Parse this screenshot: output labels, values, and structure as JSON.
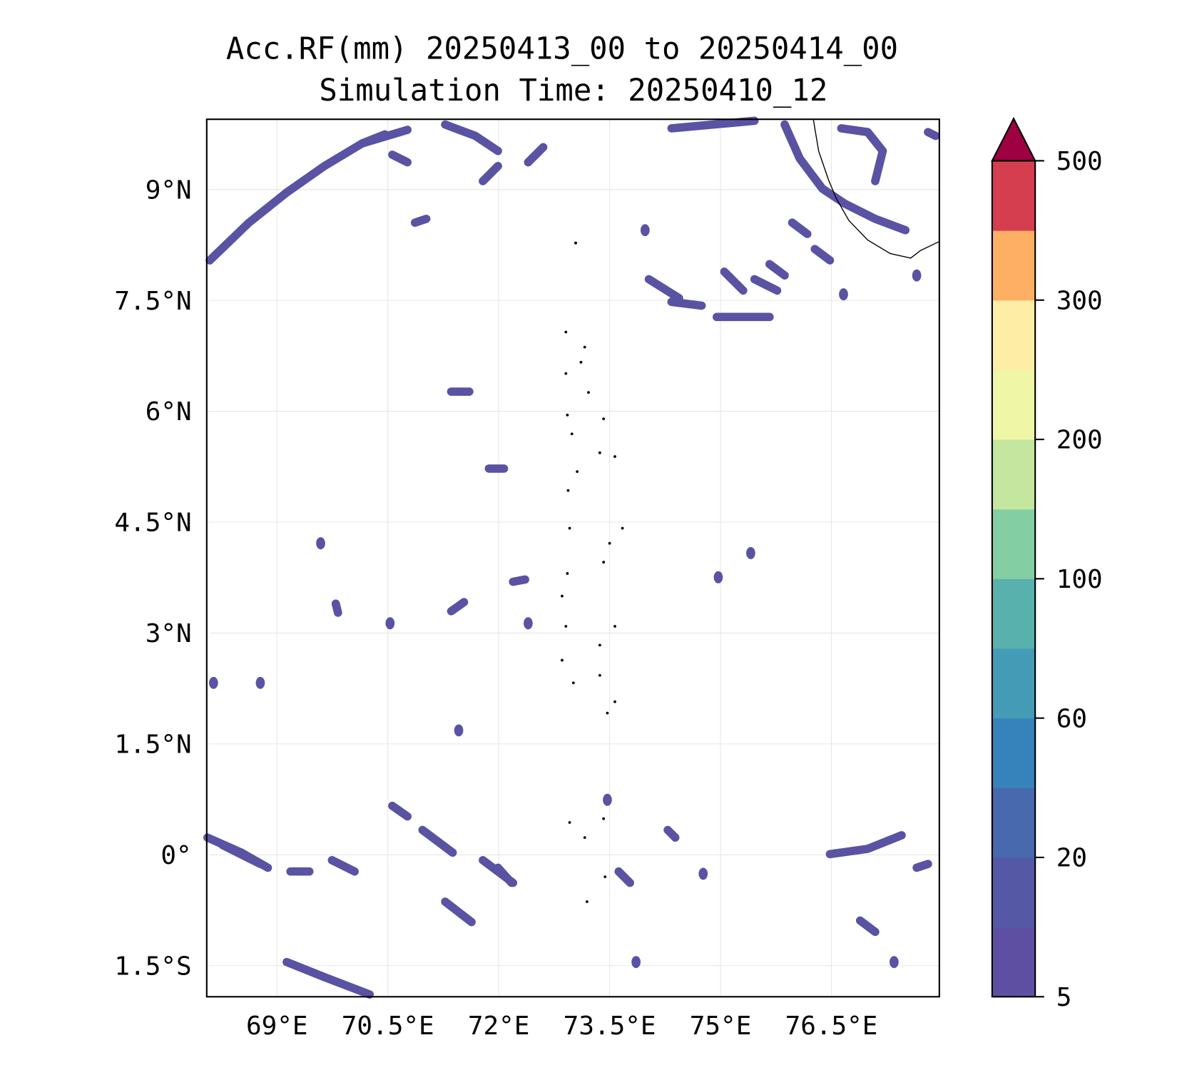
{
  "title": {
    "line1": "Acc.RF(mm) 20250413_00 to 20250414_00",
    "line2": "Simulation Time: 20250410_12"
  },
  "map": {
    "extent_lon": [
      68.05,
      77.96
    ],
    "extent_lat": [
      -1.92,
      9.95
    ],
    "lon_ticks": [
      {
        "v": 69,
        "label": "69°E"
      },
      {
        "v": 70.5,
        "label": "70.5°E"
      },
      {
        "v": 72,
        "label": "72°E"
      },
      {
        "v": 73.5,
        "label": "73.5°E"
      },
      {
        "v": 75,
        "label": "75°E"
      },
      {
        "v": 76.5,
        "label": "76.5°E"
      }
    ],
    "lat_ticks": [
      {
        "v": 9,
        "label": "9°N"
      },
      {
        "v": 7.5,
        "label": "7.5°N"
      },
      {
        "v": 6,
        "label": "6°N"
      },
      {
        "v": 4.5,
        "label": "4.5°N"
      },
      {
        "v": 3,
        "label": "3°N"
      },
      {
        "v": 1.5,
        "label": "1.5°N"
      },
      {
        "v": 0,
        "label": "0°"
      },
      {
        "v": -1.5,
        "label": "1.5°S"
      }
    ]
  },
  "colorbar": {
    "levels": [
      5,
      10,
      20,
      40,
      60,
      80,
      100,
      150,
      200,
      250,
      300,
      400,
      500
    ],
    "colors": [
      "#5e4fa2",
      "#5558a5",
      "#4869ae",
      "#3682ba",
      "#439bb5",
      "#59b1ad",
      "#84cea4",
      "#c4e69f",
      "#eff7a6",
      "#feeda4",
      "#fdb064",
      "#d53e4f"
    ],
    "extend_color": "#9e0142",
    "tick_labels": [
      {
        "v": 5,
        "label": "5"
      },
      {
        "v": 20,
        "label": "20"
      },
      {
        "v": 60,
        "label": "60"
      },
      {
        "v": 100,
        "label": "100"
      },
      {
        "v": 200,
        "label": "200"
      },
      {
        "v": 300,
        "label": "300"
      },
      {
        "v": 500,
        "label": "500"
      }
    ]
  }
}
